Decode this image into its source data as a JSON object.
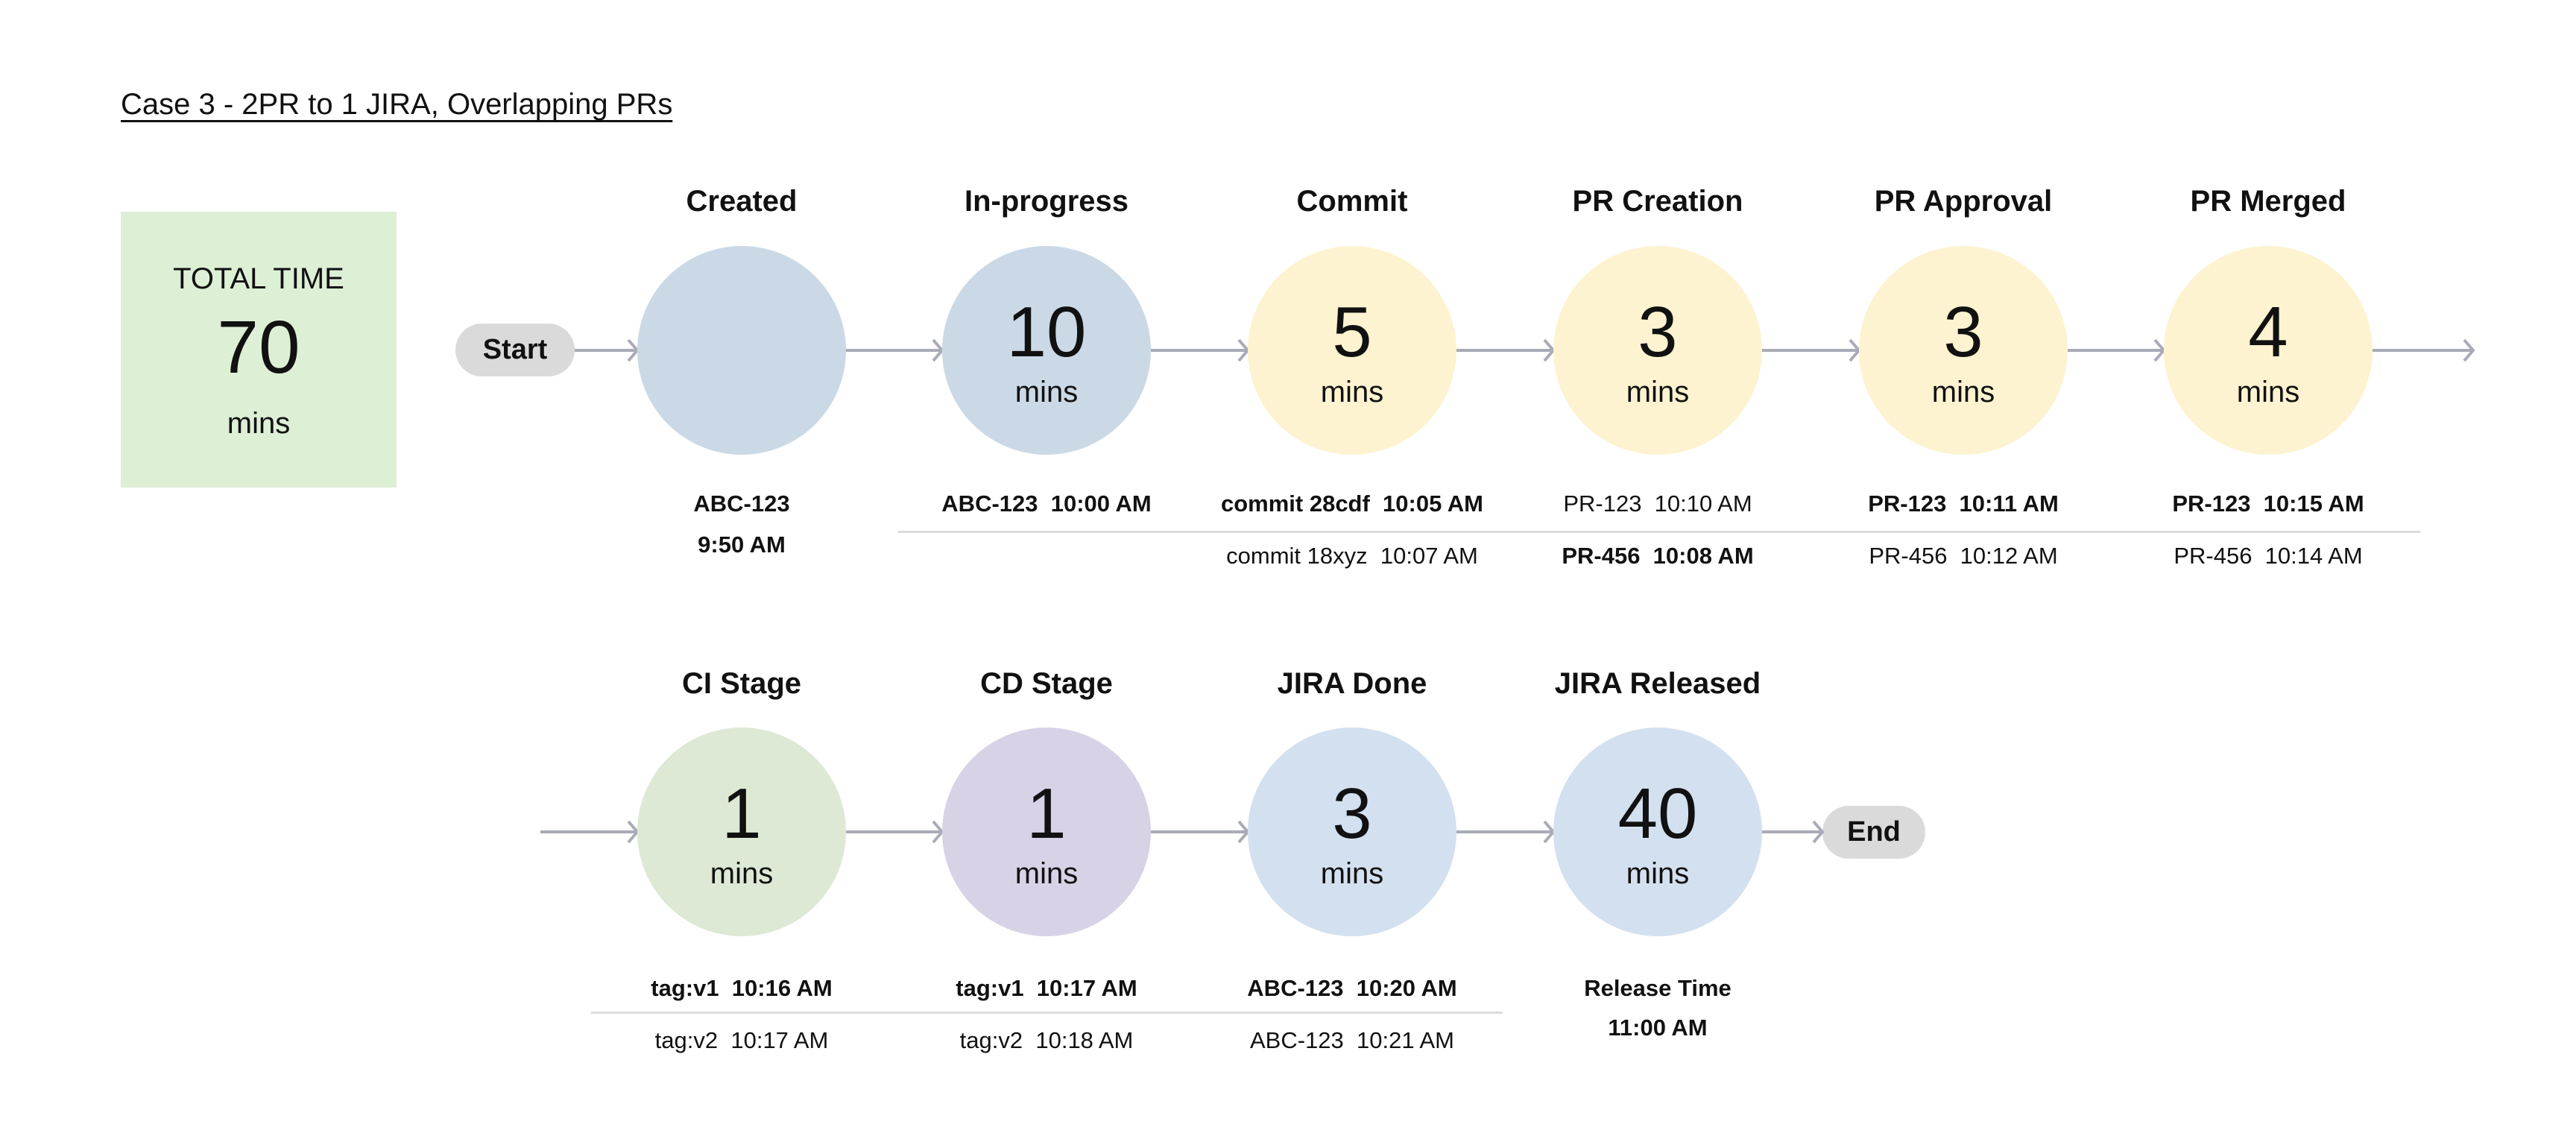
{
  "title": "Case 3 - 2PR to 1 JIRA, Overlapping PRs",
  "total": {
    "label": "TOTAL TIME",
    "value": "70",
    "unit": "mins",
    "color": "#ddefd5"
  },
  "start_label": "Start",
  "end_label": "End",
  "stages": [
    {
      "name": "Created",
      "value": "",
      "unit": "",
      "color": "#cbd9e6",
      "lines": [
        {
          "text": "ABC-123",
          "bold": true
        },
        {
          "text": "9:50 AM",
          "bold": true
        }
      ]
    },
    {
      "name": "In-progress",
      "value": "10",
      "unit": "mins",
      "color": "#cbd9e6",
      "lines": [
        {
          "text": "ABC-123  10:00 AM",
          "bold": true
        }
      ]
    },
    {
      "name": "Commit",
      "value": "5",
      "unit": "mins",
      "color": "#fdf3d0",
      "lines": [
        {
          "text": "commit 28cdf  10:05 AM",
          "bold": true
        },
        {
          "text": "commit 18xyz  10:07 AM",
          "bold": false
        }
      ]
    },
    {
      "name": "PR Creation",
      "value": "3",
      "unit": "mins",
      "color": "#fdf3d0",
      "lines": [
        {
          "text": "PR-123  10:10 AM",
          "bold": false
        },
        {
          "text": "PR-456  10:08 AM",
          "bold": true
        }
      ]
    },
    {
      "name": "PR Approval",
      "value": "3",
      "unit": "mins",
      "color": "#fdf3d0",
      "lines": [
        {
          "text": "PR-123  10:11 AM",
          "bold": true
        },
        {
          "text": "PR-456  10:12 AM",
          "bold": false
        }
      ]
    },
    {
      "name": "PR Merged",
      "value": "4",
      "unit": "mins",
      "color": "#fdf3d0",
      "lines": [
        {
          "text": "PR-123  10:15 AM",
          "bold": true
        },
        {
          "text": "PR-456  10:14 AM",
          "bold": false
        }
      ]
    },
    {
      "name": "CI Stage",
      "value": "1",
      "unit": "mins",
      "color": "#dde9d4",
      "lines": [
        {
          "text": "tag:v1  10:16 AM",
          "bold": true
        },
        {
          "text": "tag:v2  10:17 AM",
          "bold": false
        }
      ]
    },
    {
      "name": "CD Stage",
      "value": "1",
      "unit": "mins",
      "color": "#d7d2e6",
      "lines": [
        {
          "text": "tag:v1  10:17 AM",
          "bold": true
        },
        {
          "text": "tag:v2  10:18 AM",
          "bold": false
        }
      ]
    },
    {
      "name": "JIRA Done",
      "value": "3",
      "unit": "mins",
      "color": "#d3e0ef",
      "lines": [
        {
          "text": "ABC-123  10:20 AM",
          "bold": true
        },
        {
          "text": "ABC-123  10:21 AM",
          "bold": false
        }
      ]
    },
    {
      "name": "JIRA Released",
      "value": "40",
      "unit": "mins",
      "color": "#d3e0ef",
      "lines": [
        {
          "text": "Release Time",
          "bold": true
        },
        {
          "text": "11:00 AM",
          "bold": true
        }
      ]
    }
  ],
  "colors": {
    "arrow": "#a9abb6",
    "separator": "#dcdcdc",
    "pill": "#dadada"
  }
}
